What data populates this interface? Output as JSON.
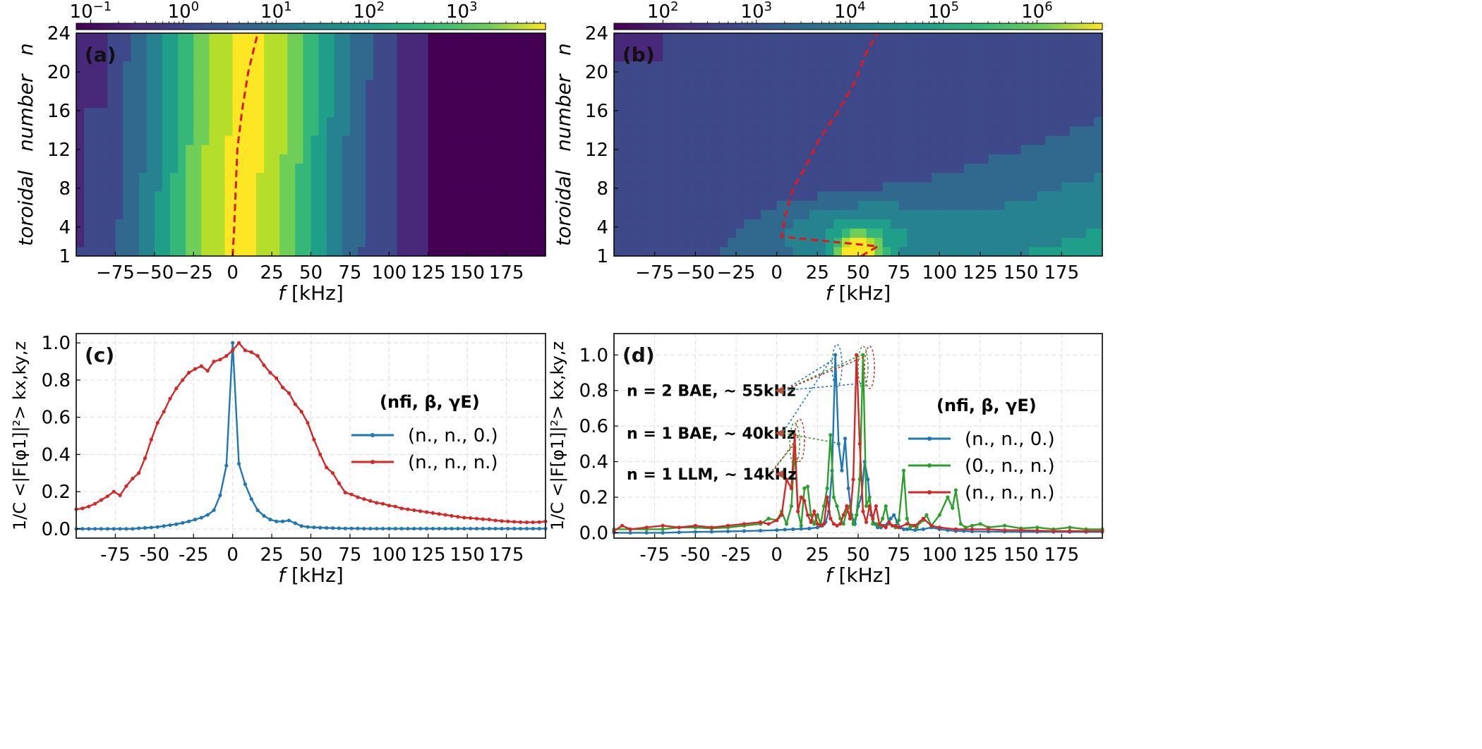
{
  "colors": {
    "blue": "#1f77b4",
    "green": "#2ca02c",
    "red": "#d62728",
    "annot_arrow": "#b5533c"
  },
  "chart_data": [
    {
      "id": "a",
      "panel_label": "(a)",
      "type": "heatmap",
      "xlabel_italic": "f",
      "xlabel_unit": " [kHz]",
      "ylabel": "toroidal   number   n",
      "xlim": [
        -100,
        200
      ],
      "ylim": [
        1,
        24
      ],
      "xticks": [
        -75,
        -50,
        -25,
        0,
        25,
        50,
        75,
        100,
        125,
        150,
        175
      ],
      "yticks": [
        1,
        4,
        8,
        12,
        16,
        20,
        24
      ],
      "colorbar": {
        "scale": "log",
        "range": [
          0.07,
          8000
        ],
        "tick_exps": [
          -1,
          0,
          1,
          2,
          3
        ],
        "tick_labels": [
          "10^-1",
          "10^0",
          "10^1",
          "10^2",
          "10^3"
        ],
        "colormap": "viridis"
      },
      "description": "Spectral power peaked near f~0-10 kHz for all n, decaying with |f|",
      "ridge_line": {
        "style": "red-dashed",
        "points": [
          [
            0,
            1
          ],
          [
            1,
            4
          ],
          [
            2,
            8
          ],
          [
            3,
            12
          ],
          [
            6,
            16
          ],
          [
            10,
            20
          ],
          [
            16,
            24
          ]
        ]
      }
    },
    {
      "id": "b",
      "panel_label": "(b)",
      "type": "heatmap",
      "xlabel_italic": "f",
      "xlabel_unit": " [kHz]",
      "ylabel": "toroidal   number   n",
      "xlim": [
        -100,
        200
      ],
      "ylim": [
        1,
        24
      ],
      "xticks": [
        -75,
        -50,
        -25,
        0,
        25,
        50,
        75,
        100,
        125,
        150,
        175
      ],
      "yticks": [
        1,
        4,
        8,
        12,
        16,
        20,
        24
      ],
      "colorbar": {
        "scale": "log",
        "range": [
          30,
          5000000
        ],
        "tick_exps": [
          2,
          3,
          4,
          5,
          6
        ],
        "tick_labels": [
          "10^2",
          "10^3",
          "10^4",
          "10^5",
          "10^6"
        ],
        "colormap": "viridis"
      },
      "description": "Strong power at low n around f~40-65 kHz, broad band rising with n",
      "ridge_line": {
        "style": "red-dashed",
        "points": [
          [
            52,
            1
          ],
          [
            62,
            2
          ],
          [
            3,
            3
          ],
          [
            5,
            5
          ],
          [
            10,
            8
          ],
          [
            17,
            10
          ],
          [
            26,
            13
          ],
          [
            38,
            16
          ],
          [
            48,
            19
          ],
          [
            55,
            22
          ],
          [
            62,
            24
          ]
        ]
      }
    },
    {
      "id": "c",
      "panel_label": "(c)",
      "type": "line",
      "xlabel_italic": "f",
      "xlabel_unit": " [kHz]",
      "ylabel": "1/C <|F[φ1]|²> kx,ky,z",
      "xlim": [
        -100,
        200
      ],
      "ylim": [
        -0.05,
        1.05
      ],
      "xticks": [
        -75,
        -50,
        -25,
        0,
        25,
        50,
        75,
        100,
        125,
        150,
        175
      ],
      "yticks": [
        0.0,
        0.2,
        0.4,
        0.6,
        0.8,
        1.0
      ],
      "grid": true,
      "legend_position": "right",
      "legend_title": "(nfi, β, γE)",
      "series": [
        {
          "name": "(n., n., 0.)",
          "color": "blue",
          "x": [
            -100,
            -96,
            -92,
            -88,
            -84,
            -80,
            -76,
            -72,
            -68,
            -64,
            -60,
            -56,
            -52,
            -48,
            -44,
            -40,
            -36,
            -32,
            -28,
            -24,
            -20,
            -16,
            -12,
            -8,
            -4,
            0,
            4,
            8,
            12,
            16,
            20,
            24,
            28,
            32,
            36,
            40,
            44,
            48,
            52,
            56,
            60,
            64,
            68,
            72,
            76,
            80,
            84,
            88,
            92,
            96,
            100,
            104,
            108,
            112,
            116,
            120,
            124,
            128,
            132,
            136,
            140,
            144,
            148,
            152,
            156,
            160,
            164,
            168,
            172,
            176,
            180,
            184,
            188,
            192,
            196,
            200
          ],
          "y": [
            0.0,
            0.0,
            0.0,
            0.0,
            0.0,
            0.0,
            0.0,
            0.0,
            0.0,
            0.0,
            0.003,
            0.005,
            0.007,
            0.01,
            0.015,
            0.02,
            0.025,
            0.032,
            0.04,
            0.05,
            0.06,
            0.075,
            0.1,
            0.18,
            0.34,
            1.0,
            0.35,
            0.24,
            0.16,
            0.1,
            0.07,
            0.05,
            0.04,
            0.04,
            0.045,
            0.03,
            0.015,
            0.01,
            0.008,
            0.006,
            0.005,
            0.004,
            0.003,
            0.002,
            0.002,
            0.002,
            0.001,
            0.001,
            0.001,
            0.001,
            0.001,
            0.001,
            0.001,
            0.001,
            0.001,
            0.001,
            0.001,
            0.001,
            0.001,
            0.001,
            0.001,
            0.001,
            0.001,
            0.001,
            0.001,
            0.001,
            0.001,
            0.001,
            0.001,
            0.001,
            0.001,
            0.001,
            0.001,
            0.001,
            0.001,
            0.001
          ]
        },
        {
          "name": "(n., n., n.)",
          "color": "red",
          "x": [
            -100,
            -96,
            -92,
            -88,
            -84,
            -80,
            -76,
            -72,
            -68,
            -64,
            -60,
            -56,
            -52,
            -48,
            -44,
            -40,
            -36,
            -32,
            -28,
            -24,
            -20,
            -16,
            -12,
            -8,
            -4,
            0,
            4,
            8,
            12,
            16,
            20,
            24,
            28,
            32,
            36,
            40,
            44,
            48,
            52,
            56,
            60,
            64,
            68,
            72,
            76,
            80,
            84,
            88,
            92,
            96,
            100,
            104,
            108,
            112,
            116,
            120,
            124,
            128,
            132,
            136,
            140,
            144,
            148,
            152,
            156,
            160,
            164,
            168,
            172,
            176,
            180,
            184,
            188,
            192,
            196,
            200
          ],
          "y": [
            0.105,
            0.11,
            0.12,
            0.135,
            0.155,
            0.175,
            0.2,
            0.18,
            0.23,
            0.27,
            0.3,
            0.38,
            0.48,
            0.57,
            0.63,
            0.7,
            0.755,
            0.8,
            0.84,
            0.86,
            0.875,
            0.85,
            0.9,
            0.91,
            0.93,
            0.96,
            1.0,
            0.96,
            0.95,
            0.93,
            0.88,
            0.84,
            0.81,
            0.76,
            0.73,
            0.67,
            0.63,
            0.57,
            0.48,
            0.4,
            0.33,
            0.3,
            0.245,
            0.195,
            0.185,
            0.17,
            0.16,
            0.15,
            0.14,
            0.135,
            0.125,
            0.12,
            0.11,
            0.105,
            0.1,
            0.095,
            0.09,
            0.085,
            0.08,
            0.075,
            0.07,
            0.065,
            0.06,
            0.058,
            0.055,
            0.052,
            0.05,
            0.045,
            0.042,
            0.04,
            0.038,
            0.036,
            0.035,
            0.035,
            0.036,
            0.04
          ]
        }
      ]
    },
    {
      "id": "d",
      "panel_label": "(d)",
      "type": "line",
      "xlabel_italic": "f",
      "xlabel_unit": " [kHz]",
      "ylabel": "1/C <|F[φ1]|²> kx,ky,z",
      "xlim": [
        -100,
        200
      ],
      "ylim": [
        -0.03,
        1.12
      ],
      "xticks": [
        -75,
        -50,
        -25,
        0,
        25,
        50,
        75,
        100,
        125,
        150,
        175
      ],
      "yticks": [
        0.0,
        0.2,
        0.4,
        0.6,
        0.8,
        1.0
      ],
      "grid": true,
      "legend_position": "right",
      "legend_title": "(nfi, β, γE)",
      "annotations": [
        {
          "text": "n = 2   BAE, ~ 55kHz",
          "x": -1,
          "y": 0.8
        },
        {
          "text": "n = 1   BAE, ~ 40kHz",
          "x": -1,
          "y": 0.56
        },
        {
          "text": "n = 1   LLM, ~ 14kHz",
          "x": -1,
          "y": 0.33
        }
      ],
      "series": [
        {
          "name": "(n., n., 0.)",
          "color": "blue",
          "x": [
            -100,
            -90,
            -80,
            -70,
            -60,
            -50,
            -40,
            -30,
            -20,
            -10,
            0,
            5,
            10,
            15,
            20,
            25,
            28,
            30,
            32,
            34,
            36,
            38,
            40,
            42,
            44,
            46,
            48,
            50,
            52,
            54,
            56,
            58,
            60,
            62,
            64,
            66,
            68,
            70,
            72,
            74,
            76,
            78,
            80,
            85,
            90,
            95,
            100,
            105,
            110,
            115,
            120,
            130,
            140,
            150,
            160,
            170,
            180,
            190,
            200
          ],
          "y": [
            0.0,
            0.0,
            0.0,
            0.0,
            0.003,
            0.005,
            0.006,
            0.008,
            0.01,
            0.012,
            0.015,
            0.018,
            0.02,
            0.022,
            0.024,
            0.03,
            0.04,
            0.06,
            0.12,
            0.35,
            1.0,
            0.5,
            0.35,
            0.53,
            0.25,
            0.1,
            0.05,
            0.15,
            0.2,
            0.4,
            0.3,
            0.1,
            0.05,
            0.03,
            0.03,
            0.04,
            0.05,
            0.08,
            0.1,
            0.06,
            0.03,
            0.02,
            0.02,
            0.015,
            0.02,
            0.03,
            0.02,
            0.015,
            0.01,
            0.01,
            0.008,
            0.007,
            0.006,
            0.005,
            0.005,
            0.005,
            0.005,
            0.005,
            0.005
          ]
        },
        {
          "name": "(0., n., n.)",
          "color": "green",
          "x": [
            -100,
            -90,
            -80,
            -70,
            -60,
            -50,
            -40,
            -30,
            -20,
            -10,
            -5,
            0,
            3,
            6,
            9,
            11,
            13,
            15,
            17,
            19,
            21,
            23,
            25,
            27,
            29,
            31,
            33,
            35,
            37,
            39,
            41,
            43,
            45,
            47,
            49,
            51,
            53,
            55,
            57,
            59,
            61,
            63,
            65,
            67,
            69,
            71,
            73,
            75,
            78,
            80,
            82,
            84,
            86,
            88,
            90,
            92,
            95,
            100,
            105,
            108,
            110,
            113,
            116,
            120,
            125,
            130,
            140,
            150,
            160,
            170,
            180,
            190,
            200
          ],
          "y": [
            0.02,
            0.02,
            0.02,
            0.02,
            0.03,
            0.03,
            0.025,
            0.03,
            0.04,
            0.05,
            0.08,
            0.07,
            0.12,
            0.05,
            0.15,
            0.48,
            0.12,
            0.04,
            0.25,
            0.26,
            0.1,
            0.05,
            0.1,
            0.05,
            0.15,
            0.25,
            0.55,
            0.2,
            0.15,
            0.08,
            0.05,
            0.12,
            0.15,
            0.05,
            0.1,
            0.3,
            1.0,
            0.15,
            0.2,
            0.05,
            0.05,
            0.04,
            0.08,
            0.15,
            0.05,
            0.04,
            0.03,
            0.07,
            0.35,
            0.08,
            0.03,
            0.04,
            0.03,
            0.06,
            0.07,
            0.1,
            0.04,
            0.1,
            0.2,
            0.14,
            0.24,
            0.05,
            0.03,
            0.04,
            0.05,
            0.03,
            0.04,
            0.025,
            0.03,
            0.02,
            0.03,
            0.02,
            0.02
          ]
        },
        {
          "name": "(n., n., n.)",
          "color": "red",
          "x": [
            -100,
            -95,
            -90,
            -80,
            -70,
            -60,
            -50,
            -40,
            -30,
            -20,
            -10,
            -5,
            0,
            3,
            6,
            9,
            11,
            13,
            15,
            17,
            19,
            21,
            23,
            25,
            27,
            29,
            31,
            33,
            35,
            37,
            39,
            41,
            43,
            45,
            47,
            49,
            51,
            53,
            55,
            57,
            59,
            61,
            63,
            65,
            67,
            69,
            71,
            73,
            75,
            80,
            85,
            90,
            95,
            100,
            110,
            120,
            130,
            140,
            150,
            160,
            170,
            180,
            190,
            200
          ],
          "y": [
            0.01,
            0.04,
            0.02,
            0.03,
            0.04,
            0.03,
            0.04,
            0.03,
            0.04,
            0.05,
            0.06,
            0.05,
            0.07,
            0.1,
            0.3,
            0.25,
            0.55,
            0.12,
            0.2,
            0.18,
            0.1,
            0.06,
            0.12,
            0.05,
            0.04,
            0.05,
            0.2,
            0.08,
            0.05,
            0.04,
            0.05,
            0.1,
            0.15,
            0.08,
            0.3,
            1.0,
            0.5,
            0.12,
            0.06,
            0.15,
            0.08,
            0.15,
            0.05,
            0.04,
            0.03,
            0.06,
            0.04,
            0.04,
            0.03,
            0.05,
            0.04,
            0.08,
            0.04,
            0.03,
            0.02,
            0.02,
            0.02,
            0.015,
            0.015,
            0.012,
            0.01,
            0.01,
            0.01,
            0.01
          ]
        }
      ]
    }
  ]
}
